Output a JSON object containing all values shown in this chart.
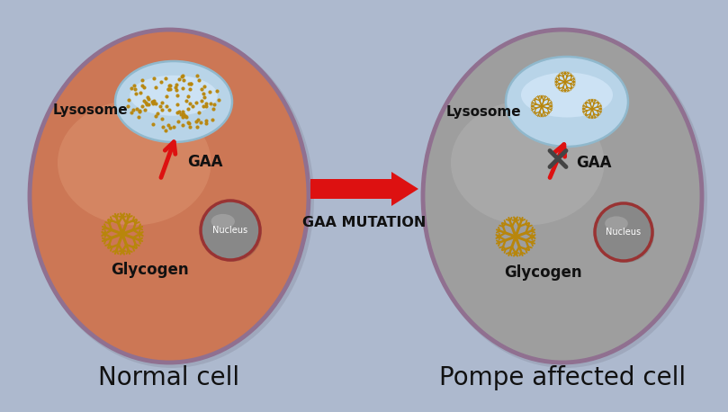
{
  "bg_color": "#adb9ce",
  "title_left": "Normal cell",
  "title_right": "Pompe affected cell",
  "arrow_label": "GAA MUTATION",
  "cell_left_color": "#cc7755",
  "cell_left_highlight": "#e8a882",
  "cell_right_color": "#9e9e9e",
  "cell_right_highlight": "#c0c0c0",
  "cell_border_color": "#907090",
  "nucleus_fill": "#888888",
  "nucleus_border": "#993333",
  "lysosome_fill": "#b8d4e8",
  "lysosome_highlight": "#ddeeff",
  "glycogen_color": "#b8860b",
  "gaa_arrow_color": "#dd1111",
  "cross_color": "#444444",
  "big_arrow_color": "#dd1111",
  "label_color": "#111111",
  "label_fontsize": 11,
  "title_fontsize": 20
}
